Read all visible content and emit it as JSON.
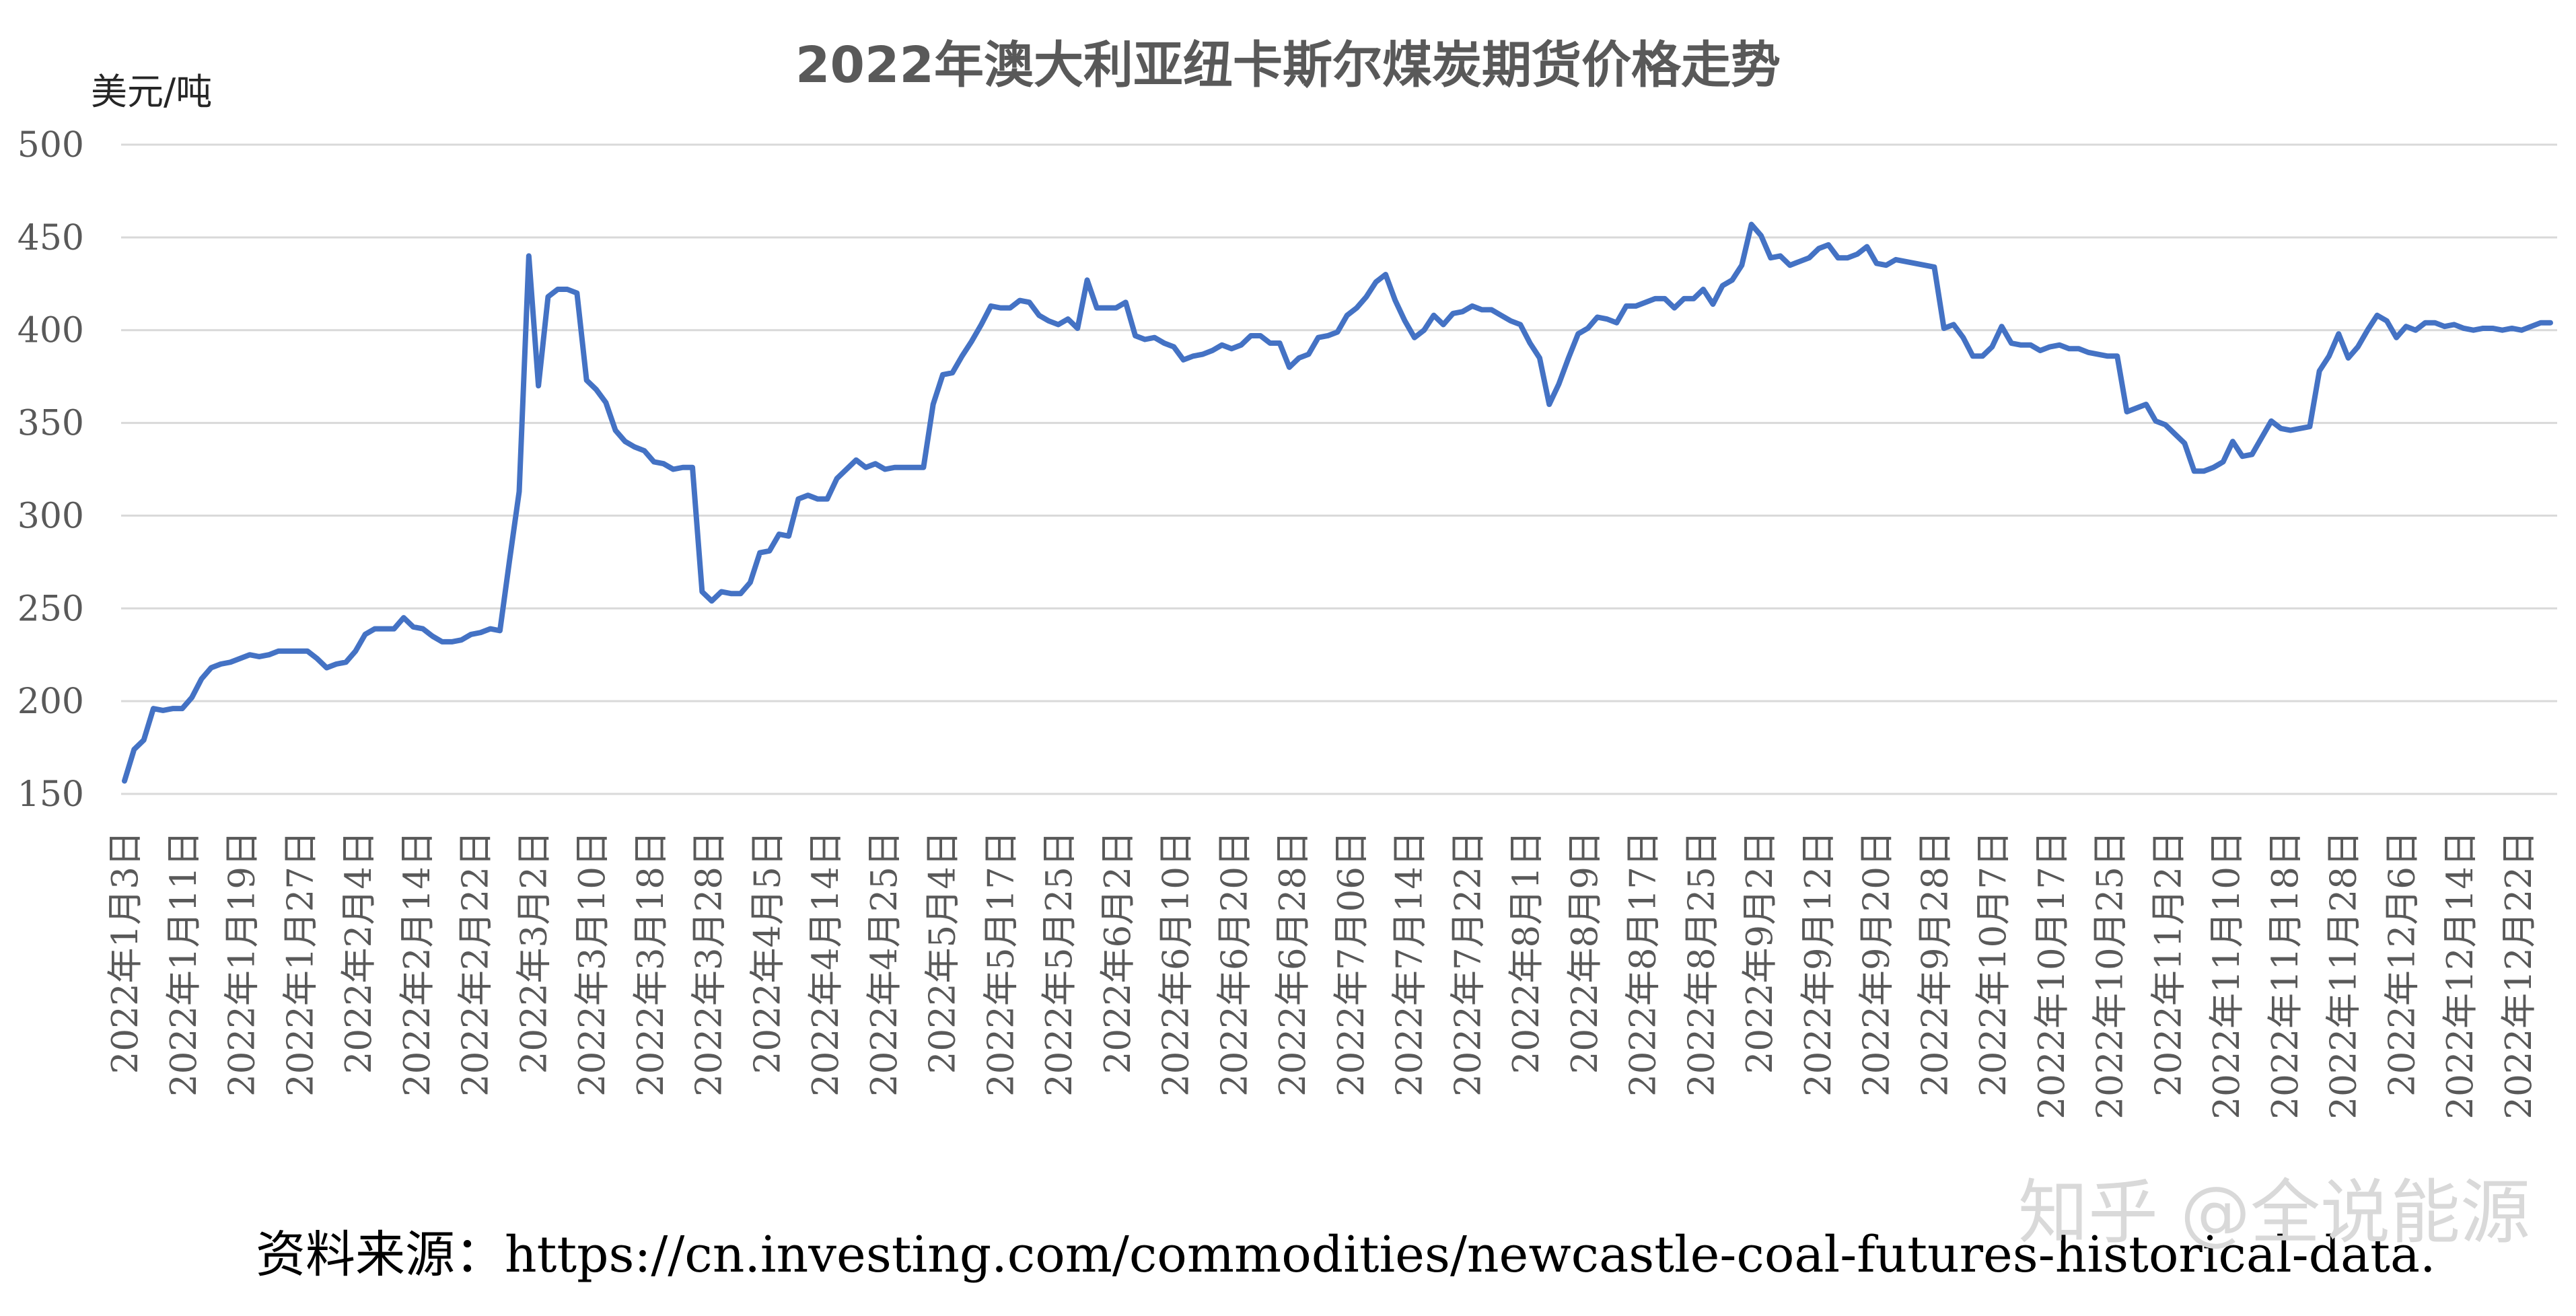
{
  "chart_data": {
    "type": "line",
    "title": "2022年澳大利亚纽卡斯尔煤炭期货价格走势",
    "ylabel": "美元/吨",
    "xlabel": "",
    "ylim": [
      150,
      500
    ],
    "yticks": [
      150,
      200,
      250,
      300,
      350,
      400,
      450,
      500
    ],
    "grid": true,
    "legend": "none",
    "line_color": "#4472C4",
    "x_tick_labels": [
      "2022年1月3日",
      "2022年1月11日",
      "2022年1月19日",
      "2022年1月27日",
      "2022年2月4日",
      "2022年2月14日",
      "2022年2月22日",
      "2022年3月2日",
      "2022年3月10日",
      "2022年3月18日",
      "2022年3月28日",
      "2022年4月5日",
      "2022年4月14日",
      "2022年4月25日",
      "2022年5月4日",
      "2022年5月17日",
      "2022年5月25日",
      "2022年6月2日",
      "2022年6月10日",
      "2022年6月20日",
      "2022年6月28日",
      "2022年7月06日",
      "2022年7月14日",
      "2022年7月22日",
      "2022年8月1日",
      "2022年8月9日",
      "2022年8月17日",
      "2022年8月25日",
      "2022年9月2日",
      "2022年9月12日",
      "2022年9月20日",
      "2022年9月28日",
      "2022年10月7日",
      "2022年10月17日",
      "2022年10月25日",
      "2022年11月2日",
      "2022年11月10日",
      "2022年11月18日",
      "2022年11月28日",
      "2022年12月6日",
      "2022年12月14日",
      "2022年12月22日"
    ],
    "values": [
      157,
      174,
      179,
      196,
      195,
      196,
      196,
      202,
      212,
      218,
      220,
      221,
      223,
      225,
      224,
      225,
      227,
      227,
      227,
      227,
      223,
      218,
      220,
      221,
      227,
      236,
      239,
      239,
      239,
      245,
      240,
      239,
      235,
      232,
      232,
      233,
      236,
      237,
      239,
      238,
      276,
      313,
      440,
      370,
      418,
      422,
      422,
      420,
      373,
      368,
      361,
      346,
      340,
      337,
      335,
      329,
      328,
      325,
      326,
      326,
      259,
      254,
      259,
      258,
      258,
      264,
      280,
      281,
      290,
      289,
      309,
      311,
      309,
      309,
      320,
      325,
      330,
      326,
      328,
      325,
      326,
      326,
      326,
      326,
      360,
      376,
      377,
      386,
      394,
      403,
      413,
      412,
      412,
      416,
      415,
      408,
      405,
      403,
      406,
      401,
      427,
      412,
      412,
      412,
      415,
      397,
      395,
      396,
      393,
      391,
      384,
      386,
      387,
      389,
      392,
      390,
      392,
      397,
      397,
      393,
      393,
      380,
      385,
      387,
      396,
      397,
      399,
      408,
      412,
      418,
      426,
      430,
      416,
      405,
      396,
      400,
      408,
      403,
      409,
      410,
      413,
      411,
      411,
      408,
      405,
      403,
      393,
      385,
      360,
      371,
      385,
      398,
      401,
      407,
      406,
      404,
      413,
      413,
      415,
      417,
      417,
      412,
      417,
      417,
      422,
      414,
      424,
      427,
      435,
      457,
      451,
      439,
      440,
      435,
      437,
      439,
      444,
      446,
      439,
      439,
      441,
      445,
      436,
      435,
      438,
      437,
      436,
      435,
      434,
      401,
      403,
      396,
      386,
      386,
      391,
      402,
      393,
      392,
      392,
      389,
      391,
      392,
      390,
      390,
      388,
      387,
      386,
      386,
      356,
      358,
      360,
      351,
      349,
      344,
      339,
      324,
      324,
      326,
      329,
      340,
      332,
      333,
      342,
      351,
      347,
      346,
      347,
      348,
      378,
      386,
      398,
      385,
      391,
      400,
      408,
      405,
      396,
      402,
      400,
      404,
      404,
      402,
      403,
      401,
      400,
      401,
      401,
      400,
      401,
      400,
      402,
      404,
      404
    ]
  },
  "source": "资料来源：https://cn.investing.com/commodities/newcastle-coal-futures-historical-data.",
  "watermark": "知乎 @全说能源"
}
